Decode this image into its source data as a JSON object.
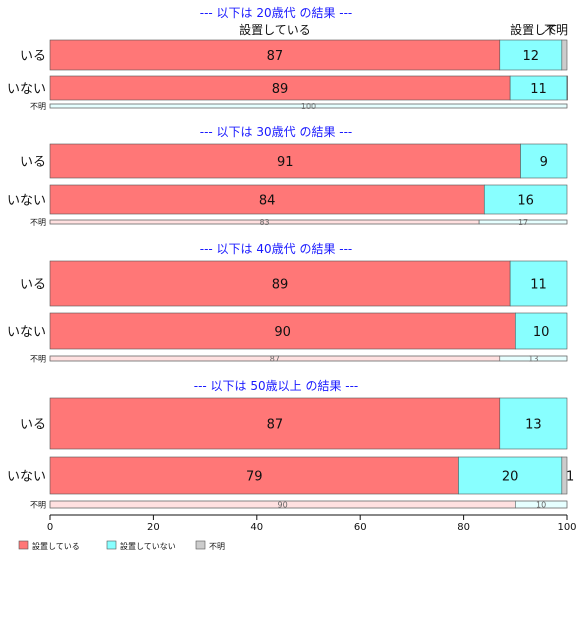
{
  "chart_data": {
    "type": "bar",
    "orientation": "horizontal",
    "stacked": "percent",
    "xlim": [
      0,
      100
    ],
    "xticks": [
      0,
      20,
      40,
      60,
      80,
      100
    ],
    "grid": false,
    "legend_position": "bottom-left",
    "categories_legend": [
      "設置している",
      "設置していない",
      "不明"
    ],
    "colors": [
      "#ff7777",
      "#88ffff",
      "#cccccc"
    ],
    "panels": [
      {
        "title": "--- 以下は 20歳代 の結果 ---",
        "top_labels": [
          "設置している",
          "設置して",
          "不明"
        ],
        "rows": [
          {
            "label": "いる",
            "values": [
              87,
              12,
              1
            ],
            "labels": [
              "87",
              "12",
              ""
            ]
          },
          {
            "label": "いない",
            "values": [
              89,
              11,
              0.5
            ],
            "labels": [
              "89",
              "11",
              ""
            ]
          },
          {
            "label": "不明",
            "values": [
              0,
              100,
              0
            ],
            "labels": [
              "",
              "100",
              ""
            ],
            "thin": true
          }
        ]
      },
      {
        "title": "--- 以下は 30歳代 の結果 ---",
        "rows": [
          {
            "label": "いる",
            "values": [
              91,
              9,
              0
            ],
            "labels": [
              "91",
              "9",
              ""
            ]
          },
          {
            "label": "いない",
            "values": [
              84,
              16,
              0
            ],
            "labels": [
              "84",
              "16",
              ""
            ]
          },
          {
            "label": "不明",
            "values": [
              83,
              17,
              0
            ],
            "labels": [
              "83",
              "17",
              ""
            ],
            "thin": true
          }
        ]
      },
      {
        "title": "--- 以下は 40歳代 の結果 ---",
        "rows": [
          {
            "label": "いる",
            "values": [
              89,
              11,
              0
            ],
            "labels": [
              "89",
              "11",
              ""
            ]
          },
          {
            "label": "いない",
            "values": [
              90,
              10,
              0
            ],
            "labels": [
              "90",
              "10",
              ""
            ]
          },
          {
            "label": "不明",
            "values": [
              87,
              13,
              0
            ],
            "labels": [
              "87",
              "13",
              ""
            ],
            "thin": true
          }
        ]
      },
      {
        "title": "--- 以下は 50歳以上 の結果 ---",
        "rows": [
          {
            "label": "いる",
            "values": [
              87,
              13,
              0
            ],
            "labels": [
              "87",
              "13",
              ""
            ]
          },
          {
            "label": "いない",
            "values": [
              79,
              20,
              1
            ],
            "labels": [
              "79",
              "20",
              "1"
            ]
          },
          {
            "label": "不明",
            "values": [
              90,
              10,
              0
            ],
            "labels": [
              "90",
              "10",
              ""
            ],
            "thin": true
          }
        ]
      }
    ]
  }
}
